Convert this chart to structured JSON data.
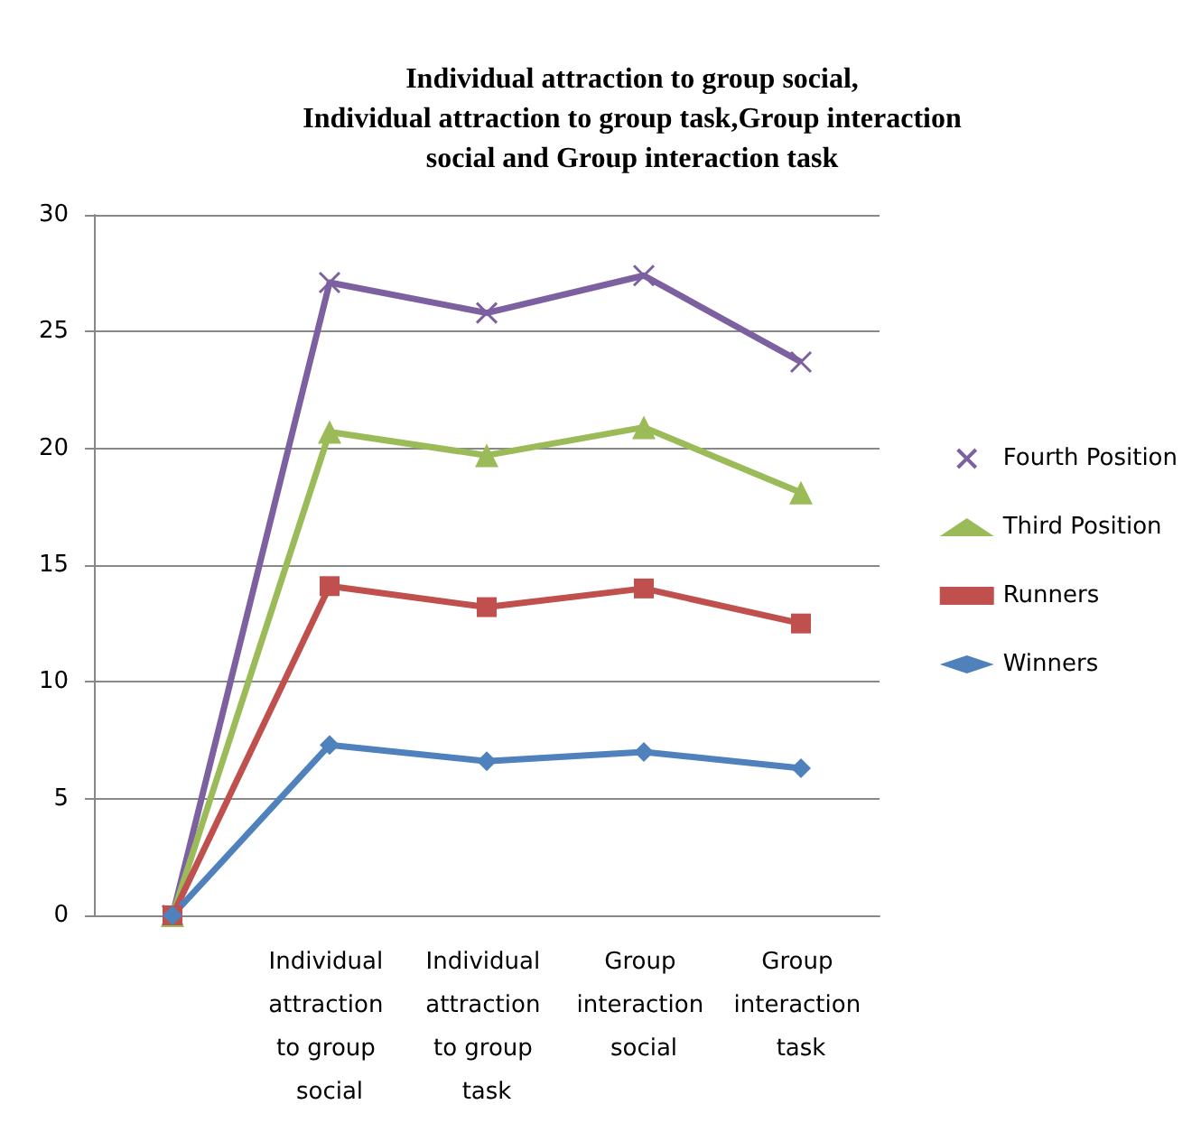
{
  "chart_data": {
    "type": "line",
    "title": "Individual attraction to group social,\nIndividual attraction to group task,Group interaction\nsocial and Group interaction task",
    "categories": [
      null,
      "Individual attraction to group social",
      "Individual attraction to group task",
      "Group interaction social",
      "Group interaction task"
    ],
    "series": [
      {
        "name": "Fourth Position",
        "color": "#7d60a0",
        "marker": "cross",
        "values": [
          0,
          27.1,
          25.8,
          27.4,
          23.7
        ]
      },
      {
        "name": "Third Position",
        "color": "#9bbb59",
        "marker": "triangle",
        "values": [
          0,
          20.7,
          19.7,
          20.9,
          18.1
        ]
      },
      {
        "name": "Runners",
        "color": "#c0504d",
        "marker": "square",
        "values": [
          0,
          14.1,
          13.2,
          14.0,
          12.5
        ]
      },
      {
        "name": "Winners",
        "color": "#4f81bd",
        "marker": "diamond",
        "values": [
          0,
          7.3,
          6.6,
          7.0,
          6.3
        ]
      }
    ],
    "ylim": [
      0,
      30
    ],
    "yticks": [
      0,
      5,
      10,
      15,
      20,
      25,
      30
    ],
    "grid": "y",
    "legend": "right"
  }
}
